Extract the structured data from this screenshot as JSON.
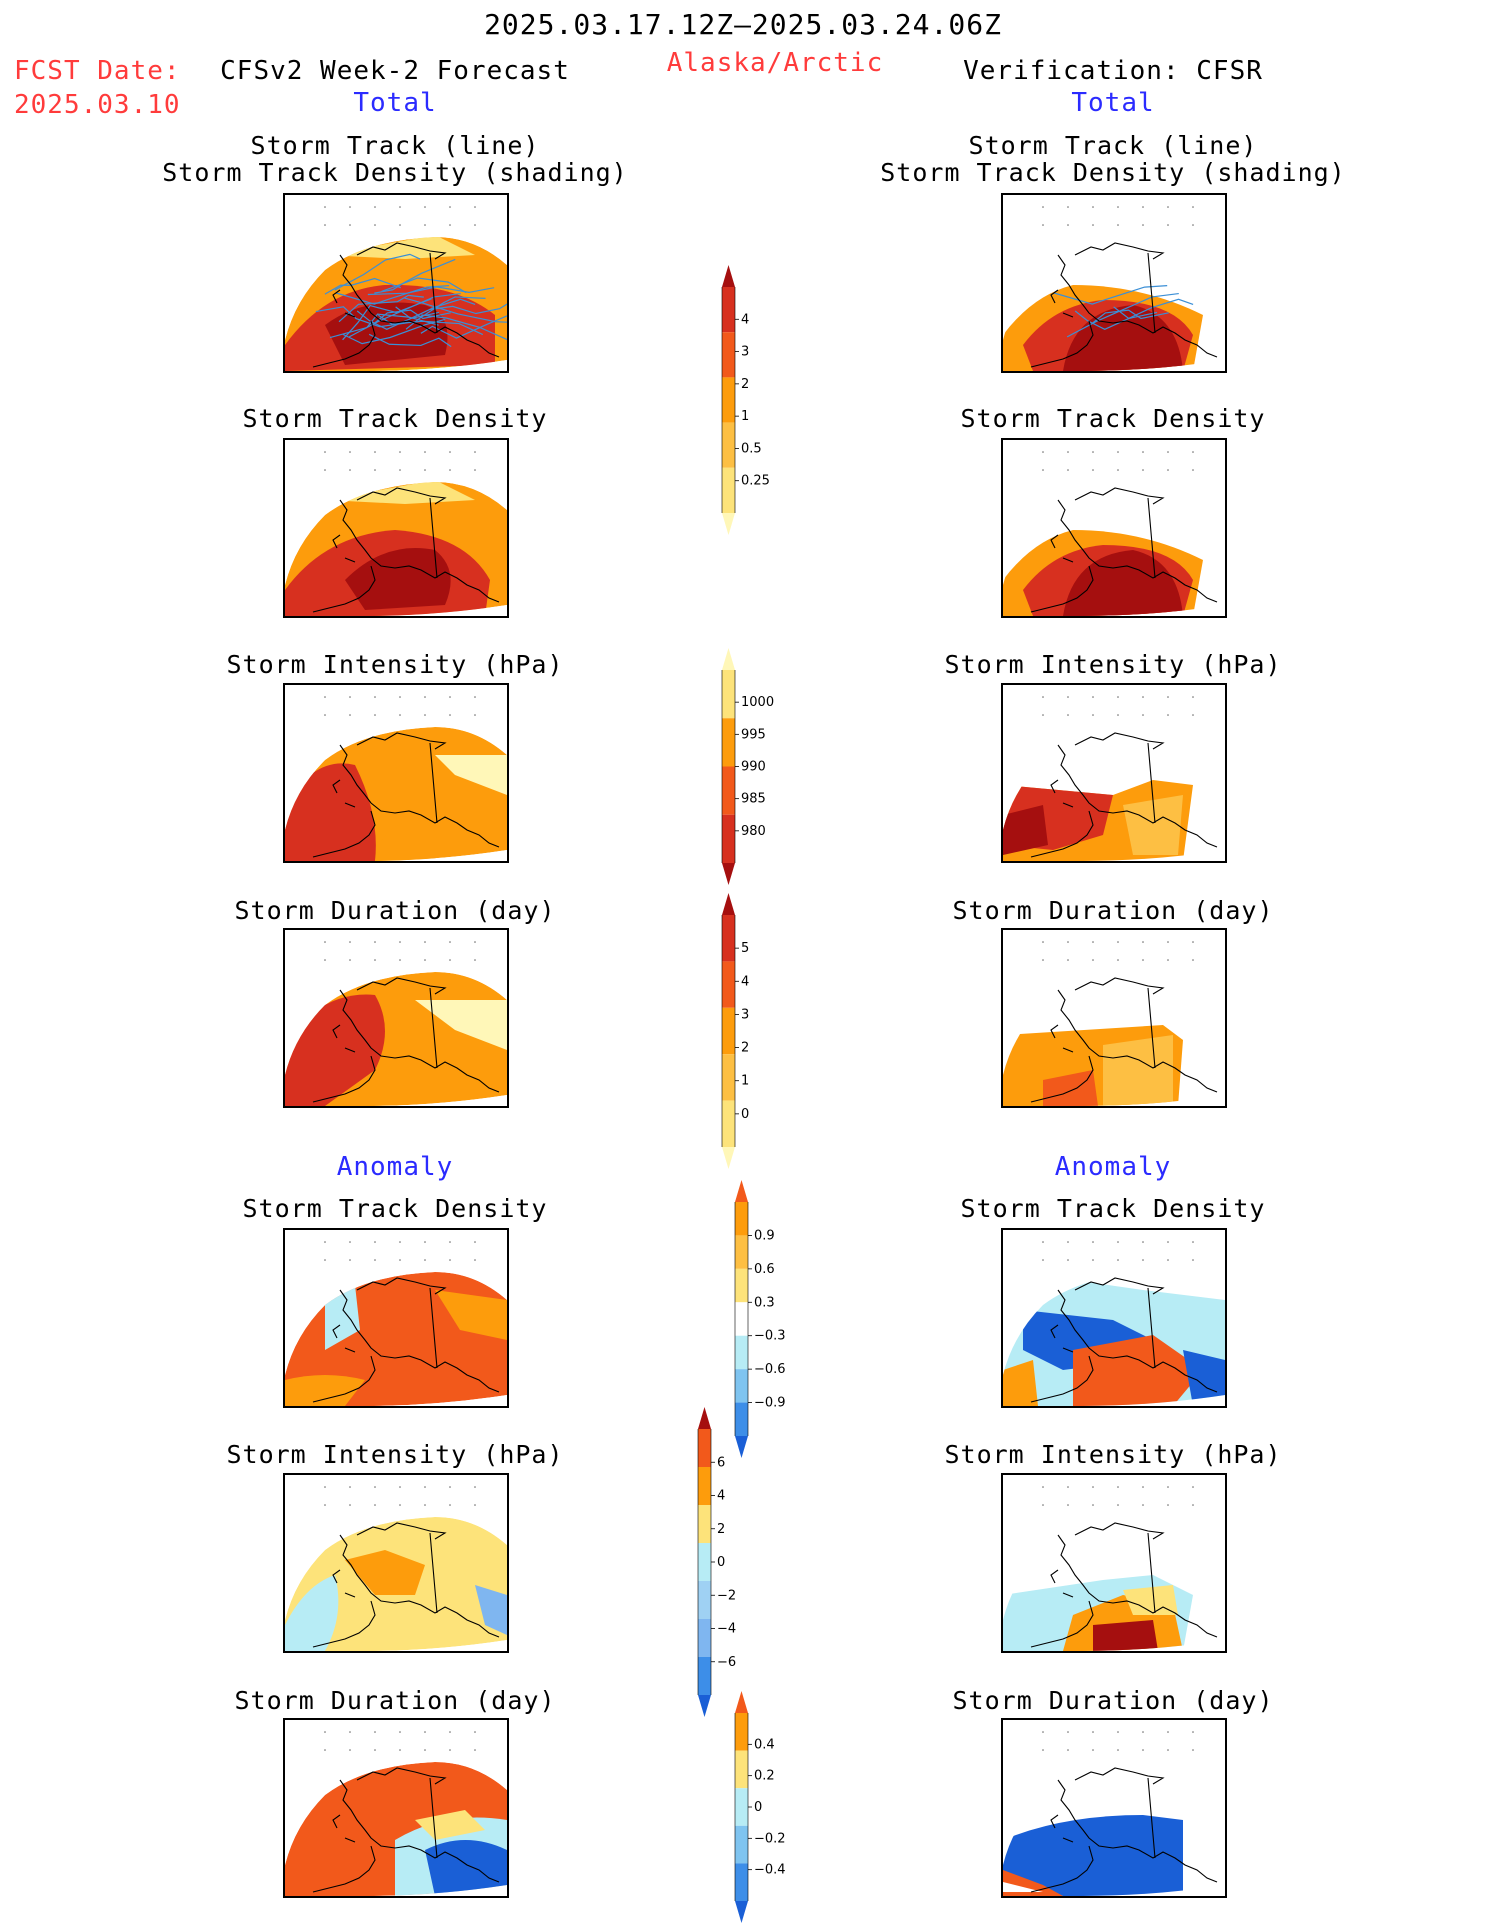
{
  "header": {
    "period": "2025.03.17.12Z–2025.03.24.06Z",
    "fcst_date_label": "FCST Date:",
    "fcst_date_value": "2025.03.10",
    "left_model": "CFSv2 Week-2 Forecast",
    "region": "Alaska/Arctic",
    "right_model": "Verification: CFSR",
    "left_total": "Total",
    "right_total": "Total"
  },
  "sections": {
    "anomaly_left": "Anomaly",
    "anomaly_right": "Anomaly"
  },
  "panels": {
    "track_title_1": "Storm Track (line)",
    "track_title_2": "Storm Track Density (shading)",
    "density": "Storm Track Density",
    "intensity": "Storm Intensity (hPa)",
    "duration": "Storm Duration (day)"
  },
  "colorbars": [
    {
      "id": "track_density",
      "labels": [
        "4",
        "3",
        "2",
        "1",
        "0.5",
        "0.25"
      ],
      "colors": [
        "#a50f0f",
        "#d7301f",
        "#f2591b",
        "#fd9c0c",
        "#fdbf43",
        "#fde37a",
        "#fff7b8"
      ]
    },
    {
      "id": "intensity",
      "labels": [
        "1000",
        "995",
        "990",
        "985",
        "980"
      ],
      "colors": [
        "#fff7b8",
        "#fde37a",
        "#fd9c0c",
        "#f2591b",
        "#d7301f",
        "#a50f0f"
      ]
    },
    {
      "id": "duration",
      "labels": [
        "5",
        "4",
        "3",
        "2",
        "1",
        "0"
      ],
      "colors": [
        "#a50f0f",
        "#d7301f",
        "#f2591b",
        "#fd9c0c",
        "#fdbf43",
        "#fde37a",
        "#fff7b8"
      ]
    },
    {
      "id": "anom_density",
      "labels": [
        "0.9",
        "0.6",
        "0.3",
        "−0.3",
        "−0.6",
        "−0.9"
      ],
      "colors": [
        "#f2591b",
        "#fd9c0c",
        "#fdbf43",
        "#fde37a",
        "#ffffff",
        "#b7ecf5",
        "#7fc4f0",
        "#3d8ee8",
        "#1a5fd6"
      ]
    },
    {
      "id": "anom_intensity",
      "labels": [
        "6",
        "4",
        "2",
        "0",
        "−2",
        "−4",
        "−6"
      ],
      "colors": [
        "#a50f0f",
        "#f2591b",
        "#fd9c0c",
        "#fde37a",
        "#b7ecf5",
        "#9fd1f3",
        "#7fb6f0",
        "#3d8ee8",
        "#1a5fd6"
      ]
    },
    {
      "id": "anom_duration",
      "labels": [
        "0.4",
        "0.2",
        "0",
        "−0.2",
        "−0.4"
      ],
      "colors": [
        "#f2591b",
        "#fd9c0c",
        "#fde37a",
        "#b7ecf5",
        "#7fc4f0",
        "#3d8ee8",
        "#1a5fd6"
      ]
    }
  ],
  "palette": {
    "dark_red": "#a50f0f",
    "red": "#d7301f",
    "red_orange": "#f2591b",
    "orange": "#fd9c0c",
    "light_orange": "#fdbf43",
    "yellow": "#fde37a",
    "pale_yellow": "#fff7b8",
    "light_blue": "#b7ecf5",
    "blue": "#1a5fd6",
    "track_line": "#3b8fd6"
  }
}
